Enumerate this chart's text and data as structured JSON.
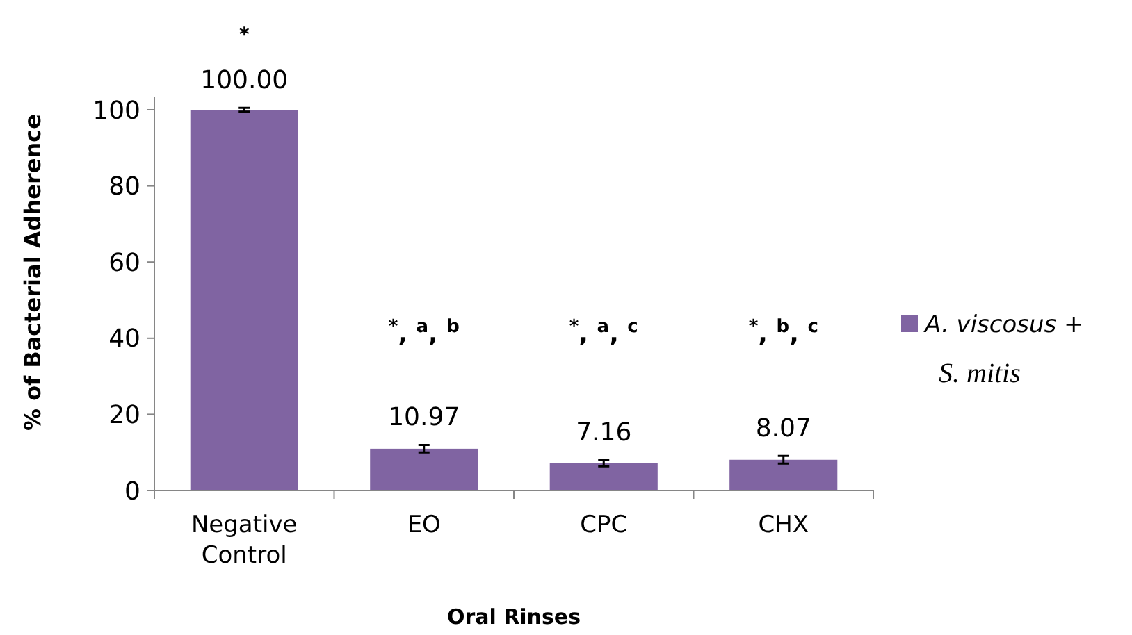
{
  "chart_data": {
    "type": "bar",
    "xlabel": "Oral Rinses",
    "ylabel": "% of Bacterial Adherence",
    "categories": [
      "Negative Control",
      "EO",
      "CPC",
      "CHX"
    ],
    "series": [
      {
        "name": "A. viscosus + S. mitis",
        "color": "#8064a2",
        "values": [
          100,
          10.97,
          7.16,
          8.07
        ],
        "errors": [
          0.5,
          1,
          0.8,
          1
        ],
        "value_labels": [
          "100.00",
          "10.97",
          "7.16",
          "8.07"
        ]
      }
    ],
    "ylim": [
      0,
      100
    ],
    "yticks": [
      0,
      20,
      40,
      60,
      80,
      100
    ],
    "grid": false,
    "legend": "right",
    "annotations": [
      "*",
      "$^{*}$, $^{a}$, $^{b}$",
      "$^{*}$, $^{a}$, $^{c}$",
      "$^{*}$, $^{b}$, $^{c}$"
    ]
  }
}
